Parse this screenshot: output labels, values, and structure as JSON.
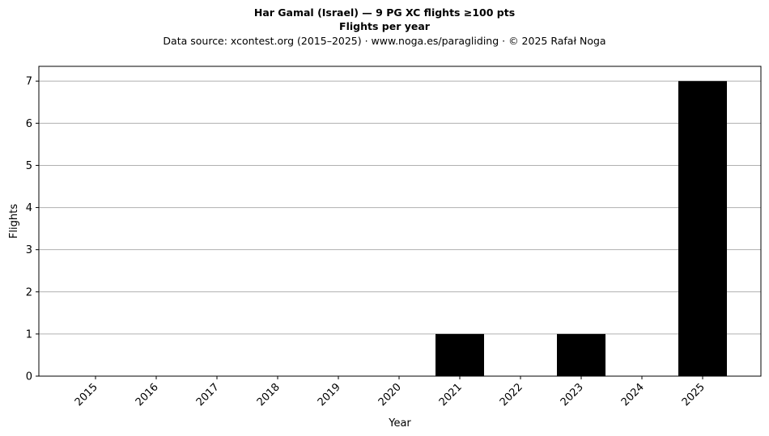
{
  "header": {
    "title": "Har Gamal (Israel)  —  9 PG XC flights ≥100 pts",
    "subtitle": "Flights per year",
    "source": "Data source: xcontest.org (2015–2025)  ·  www.noga.es/paragliding  ·  © 2025 Rafał Noga"
  },
  "chart_data": {
    "type": "bar",
    "categories": [
      "2015",
      "2016",
      "2017",
      "2018",
      "2019",
      "2020",
      "2021",
      "2022",
      "2023",
      "2024",
      "2025"
    ],
    "values": [
      0,
      0,
      0,
      0,
      0,
      0,
      1,
      0,
      1,
      0,
      7
    ],
    "xlabel": "Year",
    "ylabel": "Flights",
    "ylim": [
      0,
      7.35
    ],
    "yticks": [
      0,
      1,
      2,
      3,
      4,
      5,
      6,
      7
    ],
    "grid": "y",
    "bar_color": "#000000",
    "grid_color": "#b0b0b0"
  }
}
